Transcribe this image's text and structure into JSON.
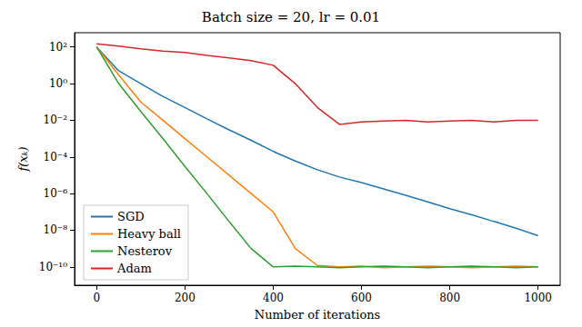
{
  "chart_data": {
    "type": "line",
    "title": "Batch size = 20, lr = 0.01",
    "x_label": "Number of iterations",
    "y_label": "f(xₖ)",
    "log": "y",
    "grid": false,
    "legend": "lower left",
    "x": [
      0,
      50,
      100,
      150,
      200,
      250,
      300,
      350,
      400,
      450,
      500,
      550,
      600,
      650,
      700,
      750,
      800,
      850,
      900,
      950,
      1000
    ],
    "xlim": [
      -50,
      1050
    ],
    "xticks": [
      0,
      200,
      400,
      600,
      800,
      1000
    ],
    "ylim": [
      1e-11,
      600
    ],
    "yticks": [
      {
        "value": 100,
        "label": "10²"
      },
      {
        "value": 1,
        "label": "10⁰"
      },
      {
        "value": 0.01,
        "label": "10⁻²"
      },
      {
        "value": 0.0001,
        "label": "10⁻⁴"
      },
      {
        "value": 1e-06,
        "label": "10⁻⁶"
      },
      {
        "value": 1e-08,
        "label": "10⁻⁸"
      },
      {
        "value": 1e-10,
        "label": "10⁻¹⁰"
      }
    ],
    "series": [
      {
        "name": "SGD",
        "color": "#1f77b4",
        "values": [
          100,
          5,
          1,
          0.2,
          0.05,
          0.012,
          0.003,
          0.0008,
          0.0002,
          6e-05,
          2e-05,
          8e-06,
          4e-06,
          1.8e-06,
          8e-07,
          3.5e-07,
          1.5e-07,
          7e-08,
          3e-08,
          1.3e-08,
          5e-09
        ]
      },
      {
        "name": "Heavy ball",
        "color": "#ff7f0e",
        "values": [
          100,
          3,
          0.1,
          0.01,
          0.001,
          0.0001,
          1e-05,
          1e-06,
          1e-07,
          1e-09,
          1.2e-10,
          1e-10,
          1.1e-10,
          9e-11,
          1e-10,
          1.1e-10,
          1e-10,
          9e-11,
          1e-10,
          1.1e-10,
          1e-10
        ]
      },
      {
        "name": "Nesterov",
        "color": "#2ca02c",
        "values": [
          100,
          1,
          0.03,
          0.001,
          3e-05,
          1e-06,
          3e-08,
          1e-09,
          1e-10,
          1.1e-10,
          1e-10,
          9e-11,
          1e-10,
          1.1e-10,
          1e-10,
          9e-11,
          1e-10,
          1.1e-10,
          1e-10,
          9e-11,
          1e-10
        ]
      },
      {
        "name": "Adam",
        "color": "#d62728",
        "values": [
          150,
          110,
          80,
          60,
          50,
          35,
          25,
          18,
          10,
          1,
          0.05,
          0.006,
          0.008,
          0.009,
          0.01,
          0.008,
          0.009,
          0.01,
          0.008,
          0.01,
          0.01
        ]
      }
    ]
  }
}
